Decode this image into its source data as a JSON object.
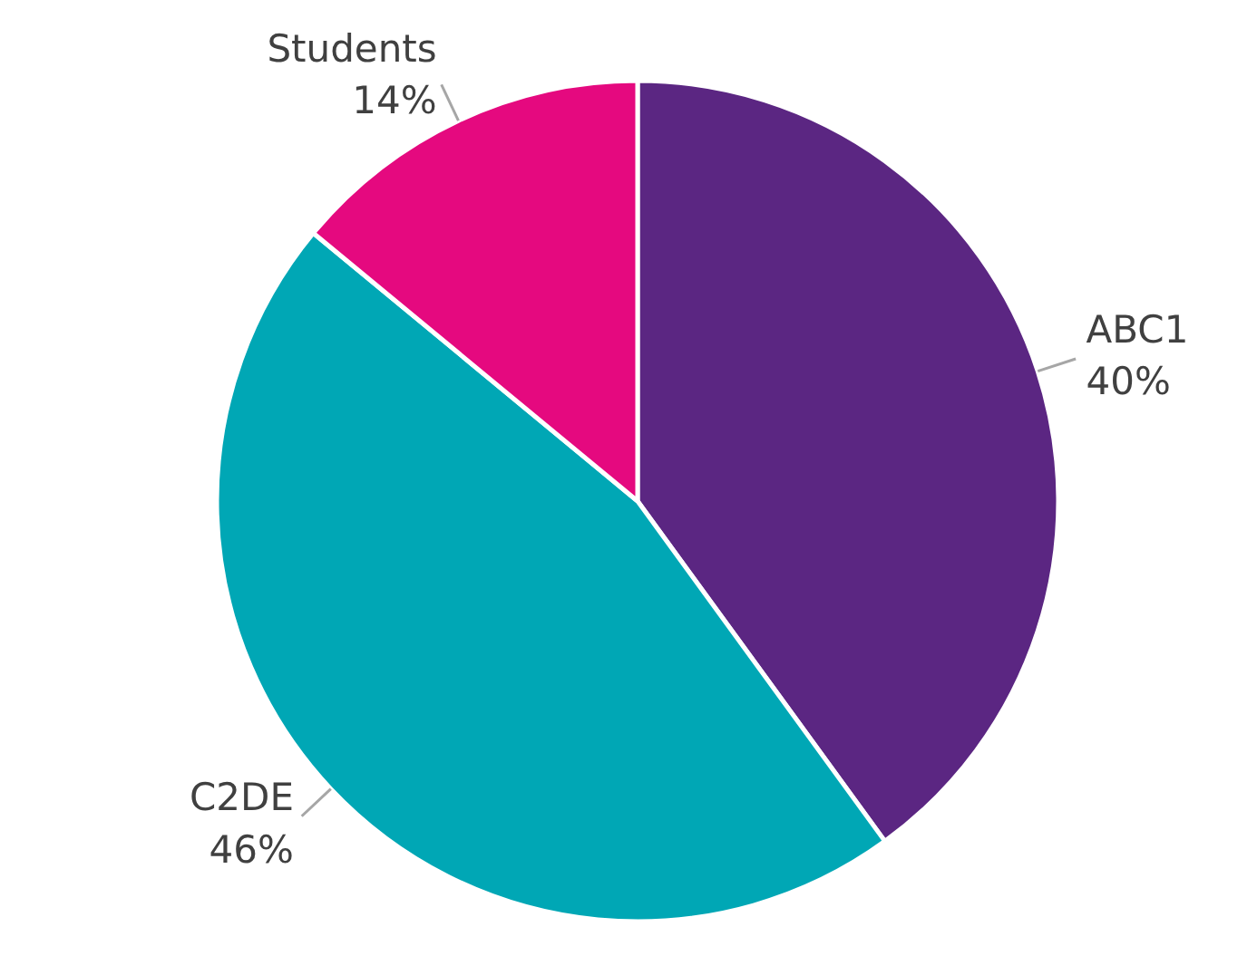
{
  "chart_data": {
    "type": "pie",
    "categories": [
      "ABC1",
      "C2DE",
      "Students"
    ],
    "values": [
      40,
      46,
      14
    ],
    "colors": [
      "#5b2682",
      "#00a7b5",
      "#e5097f"
    ],
    "value_labels": [
      "40%",
      "46%",
      "14%"
    ]
  }
}
